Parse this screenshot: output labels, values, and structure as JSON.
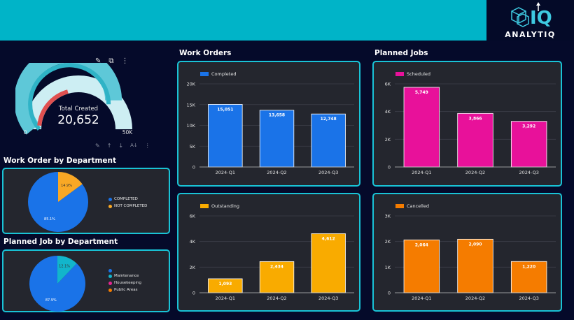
{
  "brand": {
    "name": "ANALYTIQ"
  },
  "gauge": {
    "label": "Total Created",
    "value": "20,652",
    "min_label": "0",
    "max_label": "50K",
    "fraction": 0.413,
    "colors": {
      "track": "#cdeef3",
      "fill": "#5ec8d8",
      "marker": "#e05050"
    }
  },
  "gauge_toolbar": {
    "edit_icon": "pencil-icon",
    "export_icon": "export-icon",
    "menu_icon": "more-vert-icon"
  },
  "gauge_footer": {
    "icons": [
      "pencil-icon",
      "arrow-up-icon",
      "arrow-down-icon",
      "sort-az-icon",
      "more-vert-icon"
    ]
  },
  "sections": {
    "work_order_by_dept": "Work Order by Department",
    "planned_job_by_dept": "Planned Job by Department",
    "work_orders": "Work Orders",
    "planned_jobs": "Planned Jobs"
  },
  "pie_work_orders": {
    "legend": [
      {
        "label": "COMPLETED",
        "color": "#1a73e8"
      },
      {
        "label": "NOT COMPLETED",
        "color": "#f9a825"
      }
    ]
  },
  "pie_planned_jobs": {
    "legend": [
      {
        "label": "",
        "color": "#1a73e8"
      },
      {
        "label": "Maintenance",
        "color": "#12b5cb"
      },
      {
        "label": "Housekeeping",
        "color": "#e52592"
      },
      {
        "label": "Public Areas",
        "color": "#f57c00"
      }
    ]
  },
  "chart_data": [
    {
      "type": "pie",
      "slices": [
        {
          "label": "COMPLETED",
          "value": 85.1,
          "color": "#1a73e8",
          "text": "85.1%"
        },
        {
          "label": "NOT COMPLETED",
          "value": 14.9,
          "color": "#f9a825",
          "text": "14.9%"
        }
      ]
    },
    {
      "type": "pie",
      "slices": [
        {
          "label": "",
          "value": 87.9,
          "color": "#1a73e8",
          "text": "87.9%"
        },
        {
          "label": "Maintenance",
          "value": 12.1,
          "color": "#12b5cb",
          "text": "12.1%"
        }
      ]
    },
    {
      "type": "bar",
      "categories": [
        "2024-Q1",
        "2024-Q2",
        "2024-Q3"
      ],
      "series": [
        {
          "name": "Completed",
          "values": [
            15051,
            13658,
            12748
          ],
          "color": "#1a73e8"
        }
      ],
      "value_labels": [
        "15,051",
        "13,658",
        "12,748"
      ],
      "ylim": [
        0,
        20000
      ],
      "yticks": [
        0,
        5000,
        10000,
        15000,
        20000
      ],
      "ytick_labels": [
        "0",
        "5K",
        "10K",
        "15K",
        "20K"
      ],
      "grid": true
    },
    {
      "type": "bar",
      "categories": [
        "2024-Q1",
        "2024-Q2",
        "2024-Q3"
      ],
      "series": [
        {
          "name": "Scheduled",
          "values": [
            5749,
            3866,
            3292
          ],
          "color": "#e8119a"
        }
      ],
      "value_labels": [
        "5,749",
        "3,866",
        "3,292"
      ],
      "ylim": [
        0,
        6000
      ],
      "yticks": [
        0,
        2000,
        4000,
        6000
      ],
      "ytick_labels": [
        "0",
        "2K",
        "4K",
        "6K"
      ],
      "grid": true
    },
    {
      "type": "bar",
      "categories": [
        "2024-Q1",
        "2024-Q2",
        "2024-Q3"
      ],
      "series": [
        {
          "name": "Outstanding",
          "values": [
            1093,
            2434,
            4612
          ],
          "color": "#f9ab00"
        }
      ],
      "value_labels": [
        "1,093",
        "2,434",
        "4,612"
      ],
      "ylim": [
        0,
        6000
      ],
      "yticks": [
        0,
        2000,
        4000,
        6000
      ],
      "ytick_labels": [
        "0",
        "2K",
        "4K",
        "6K"
      ],
      "grid": true
    },
    {
      "type": "bar",
      "categories": [
        "2024-Q1",
        "2024-Q2",
        "2024-Q3"
      ],
      "series": [
        {
          "name": "Cancelled",
          "values": [
            2064,
            2090,
            1220
          ],
          "color": "#f57c00"
        }
      ],
      "value_labels": [
        "2,064",
        "2,090",
        "1,220"
      ],
      "ylim": [
        0,
        3000
      ],
      "yticks": [
        0,
        1000,
        2000,
        3000
      ],
      "ytick_labels": [
        "0",
        "1K",
        "2K",
        "3K"
      ],
      "grid": true
    }
  ]
}
